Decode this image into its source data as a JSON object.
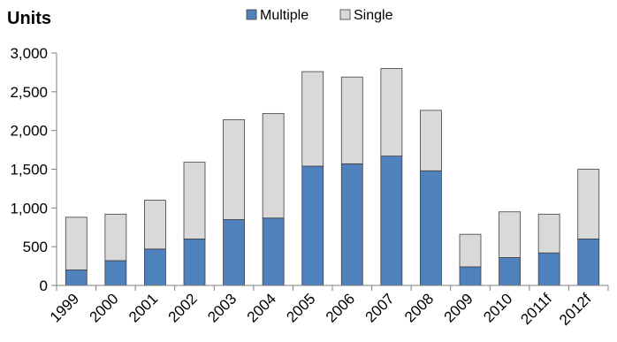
{
  "chart_data": {
    "type": "bar",
    "stacked": true,
    "ylabel": "Units",
    "xlabel": "",
    "ylim": [
      0,
      3000
    ],
    "yticks": [
      0,
      500,
      1000,
      1500,
      2000,
      2500,
      3000
    ],
    "ytick_labels": [
      "0",
      "500",
      "1,000",
      "1,500",
      "2,000",
      "2,500",
      "3,000"
    ],
    "categories": [
      "1999",
      "2000",
      "2001",
      "2002",
      "2003",
      "2004",
      "2005",
      "2006",
      "2007",
      "2008",
      "2009",
      "2010",
      "2011f",
      "2012f"
    ],
    "series": [
      {
        "name": "Multiple",
        "color": "#4f81bd",
        "values": [
          200,
          320,
          470,
          600,
          850,
          870,
          1540,
          1570,
          1670,
          1480,
          240,
          360,
          420,
          600
        ]
      },
      {
        "name": "Single",
        "color": "#d9d9d9",
        "values": [
          680,
          600,
          630,
          990,
          1290,
          1350,
          1220,
          1120,
          1130,
          780,
          420,
          590,
          500,
          900
        ]
      }
    ],
    "grid": false,
    "legend": "top-center"
  }
}
